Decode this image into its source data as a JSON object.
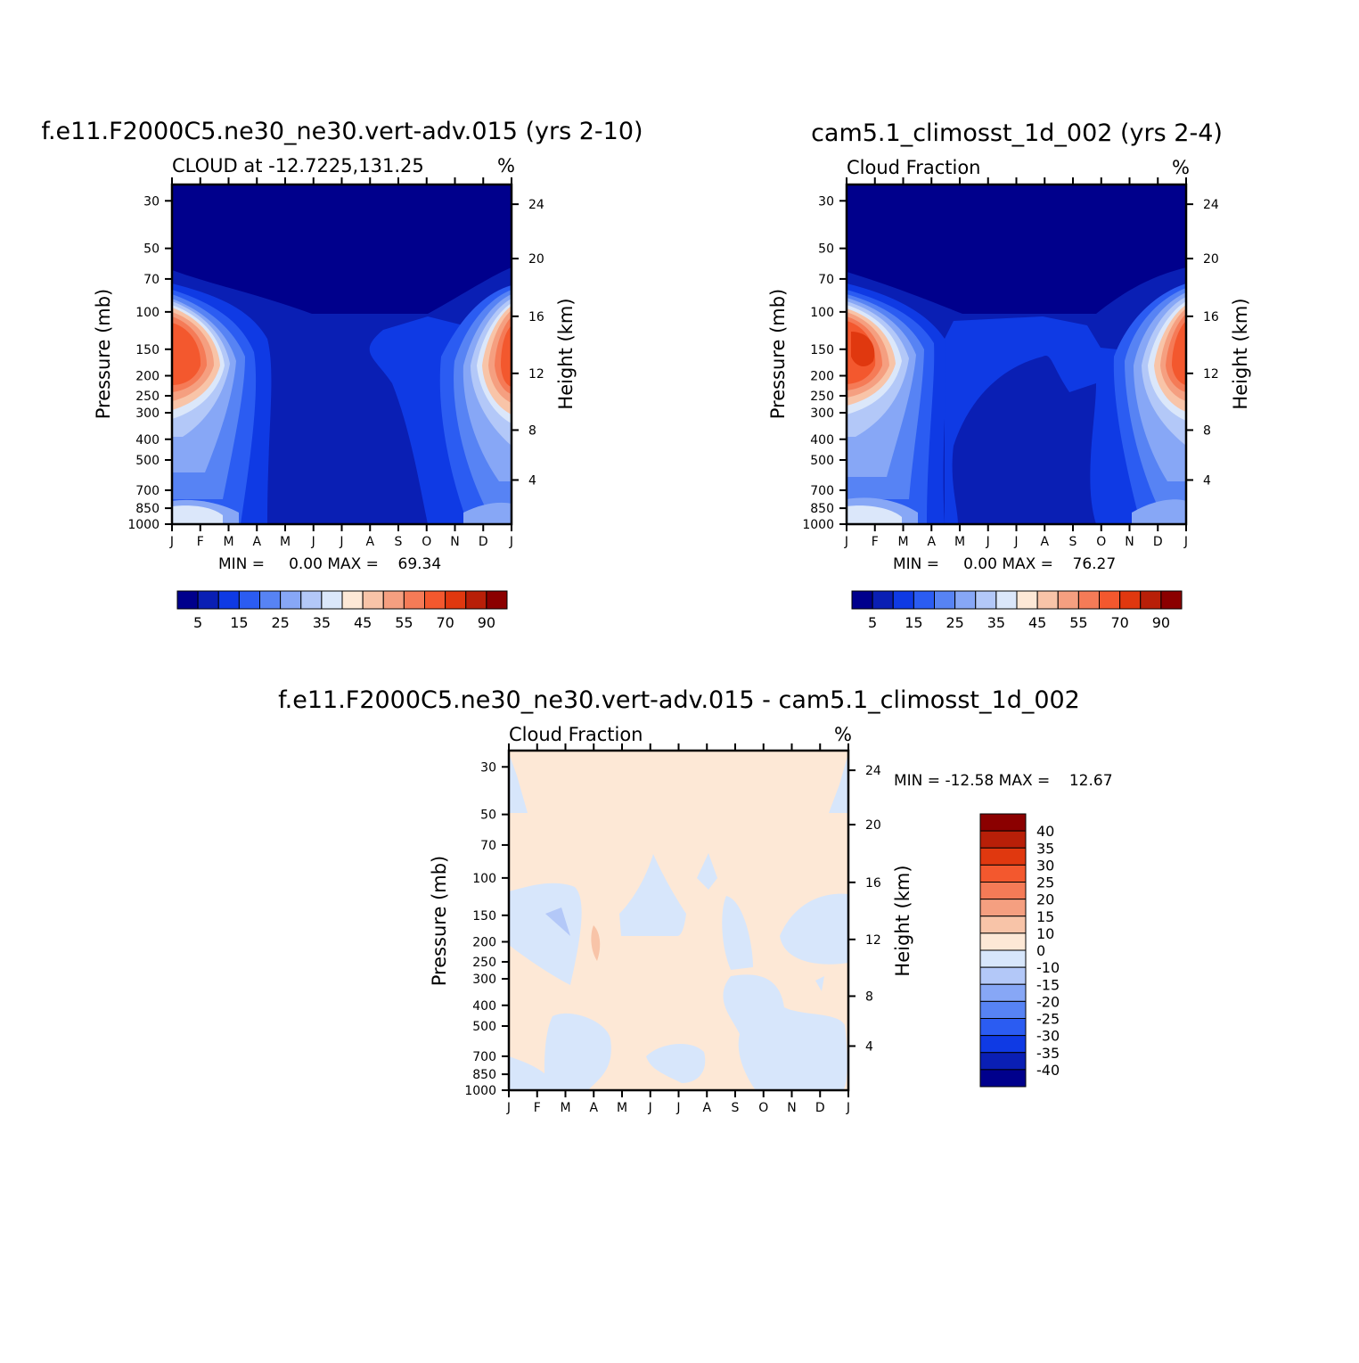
{
  "plots": [
    {
      "title": "f.e11.F2000C5.ne30_ne30.vert-adv.015 (yrs 2-10)",
      "subtitle": "CLOUD at -12.7225,131.25",
      "units": "%",
      "ylabel": "Pressure (mb)",
      "ylabel_right": "Height (km)",
      "min_text": "MIN =     0.00 MAX =    69.34"
    },
    {
      "title": "cam5.1_climosst_1d_002 (yrs 2-4)",
      "subtitle": "Cloud Fraction",
      "units": "%",
      "ylabel": "Pressure (mb)",
      "ylabel_right": "Height (km)",
      "min_text": "MIN =     0.00 MAX =    76.27"
    },
    {
      "title": "f.e11.F2000C5.ne30_ne30.vert-adv.015 - cam5.1_climosst_1d_002",
      "subtitle": "Cloud Fraction",
      "units": "%",
      "ylabel": "Pressure (mb)",
      "ylabel_right": "Height (km)",
      "min_text": "MIN = -12.58 MAX =    12.67"
    }
  ],
  "chart_data": {
    "type": "heatmap",
    "x_categories": [
      "J",
      "F",
      "M",
      "A",
      "M",
      "J",
      "J",
      "A",
      "S",
      "O",
      "N",
      "D",
      "J"
    ],
    "pressure_ticks": [
      "30",
      "50",
      "70",
      "100",
      "150",
      "200",
      "250",
      "300",
      "400",
      "500",
      "700",
      "850",
      "1000"
    ],
    "height_ticks": [
      "24",
      "20",
      "16",
      "12",
      "8",
      "4"
    ],
    "colorbar_abs": {
      "labels": [
        "5",
        "15",
        "25",
        "35",
        "45",
        "55",
        "70",
        "90"
      ],
      "colors": [
        "#00008c",
        "#0a1fb4",
        "#0f3ae4",
        "#2b5cf2",
        "#5783f4",
        "#87a7f6",
        "#b3c8f8",
        "#dbe7fa",
        "#fde8d6",
        "#f8c4a8",
        "#f59f80",
        "#f57b57",
        "#f3582e",
        "#e0380f",
        "#b81f08",
        "#8b0000"
      ]
    },
    "colorbar_diff": {
      "labels": [
        "40",
        "35",
        "30",
        "25",
        "20",
        "15",
        "10",
        "0",
        "-10",
        "-15",
        "-20",
        "-25",
        "-30",
        "-35",
        "-40"
      ],
      "colors": [
        "#8b0000",
        "#b81f08",
        "#e0380f",
        "#f3582e",
        "#f57b57",
        "#f59f80",
        "#f8c4a8",
        "#fde8d6",
        "#d7e6fb",
        "#b3c8f8",
        "#87a7f6",
        "#5783f4",
        "#2b5cf2",
        "#0f3ae4",
        "#0a1fb4",
        "#00008c"
      ]
    }
  }
}
